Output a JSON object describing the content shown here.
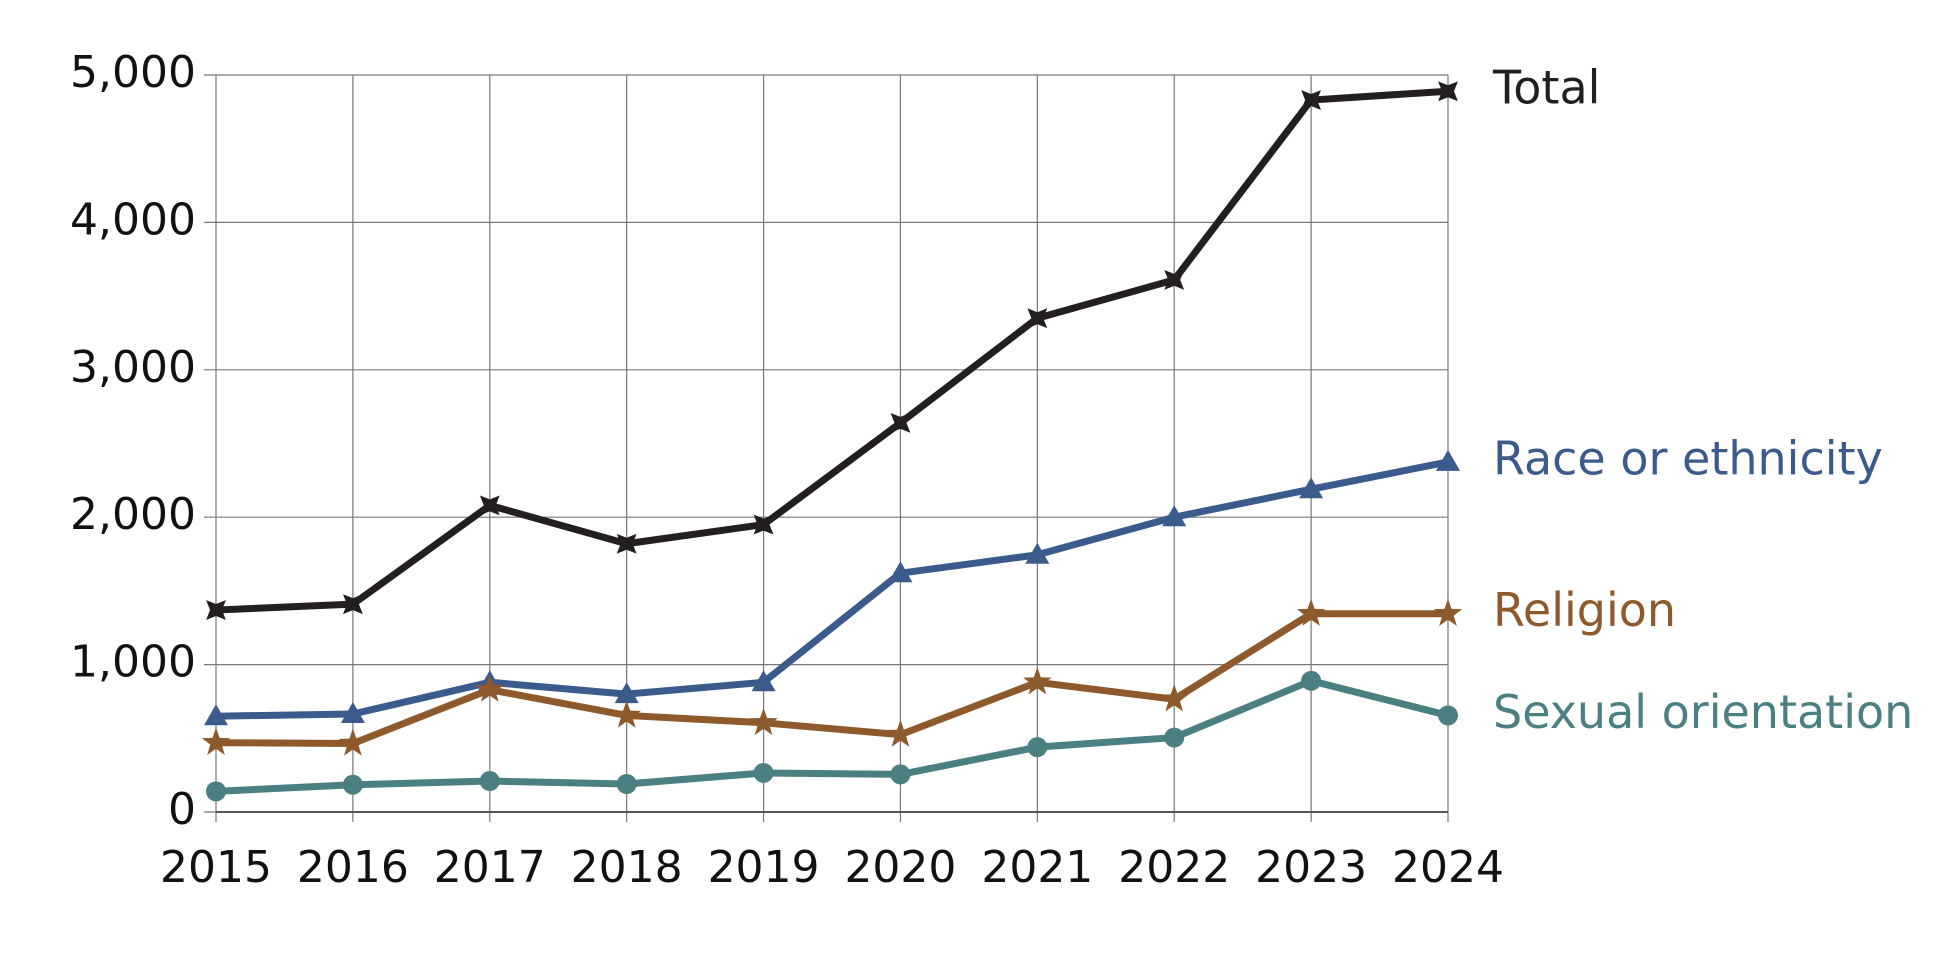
{
  "chart_data": {
    "type": "line",
    "categories": [
      "2015",
      "2016",
      "2017",
      "2018",
      "2019",
      "2020",
      "2021",
      "2022",
      "2023",
      "2024"
    ],
    "series": [
      {
        "name": "Total",
        "color": "#231f20",
        "marker": "cross",
        "values": [
          1370,
          1410,
          2080,
          1820,
          1950,
          2640,
          3350,
          3610,
          4830,
          4890
        ]
      },
      {
        "name": "Race or ethnicity",
        "color": "#3b5b8c",
        "marker": "triangle",
        "values": [
          650,
          665,
          880,
          800,
          880,
          1620,
          1745,
          2000,
          2190,
          2375
        ]
      },
      {
        "name": "Religion",
        "color": "#8e5a2c",
        "marker": "star",
        "values": [
          470,
          465,
          830,
          655,
          605,
          525,
          880,
          765,
          1345,
          1345
        ]
      },
      {
        "name": "Sexual orientation",
        "color": "#4a8082",
        "marker": "circle",
        "values": [
          140,
          185,
          210,
          190,
          265,
          255,
          440,
          505,
          890,
          655
        ]
      }
    ],
    "ylim": [
      0,
      5000
    ],
    "yticks": [
      0,
      {
        "value": 1000,
        "label": "1,000"
      },
      {
        "value": 2000,
        "label": "2,000"
      },
      {
        "value": 3000,
        "label": "3,000"
      },
      {
        "value": 4000,
        "label": "4,000"
      },
      {
        "value": 5000,
        "label": "5,000"
      }
    ],
    "grid": true
  }
}
